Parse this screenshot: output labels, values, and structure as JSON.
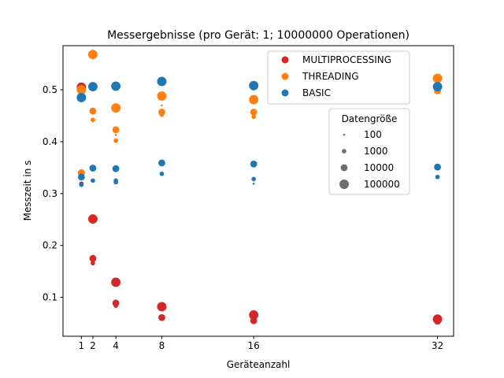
{
  "chart_data": {
    "type": "scatter",
    "title": "Messergebnisse (pro Gerät: 1; 10000000 Operationen)",
    "xlabel": "Geräteanzahl",
    "ylabel": "Messzeit in s",
    "xlim": [
      -0.6,
      33.4
    ],
    "ylim": [
      0.025,
      0.585
    ],
    "x_ticks": [
      1,
      2,
      4,
      8,
      16,
      32
    ],
    "y_ticks": [
      0.1,
      0.2,
      0.3,
      0.4,
      0.5
    ],
    "y_tick_labels": [
      "0.1",
      "0.2",
      "0.3",
      "0.4",
      "0.5"
    ],
    "grid": false,
    "legend_placement": "top-right",
    "size_legend_title": "Datengröße",
    "sizes": [
      100,
      1000,
      10000,
      100000
    ],
    "size_labels": [
      "100",
      "1000",
      "10000",
      "100000"
    ],
    "series": [
      {
        "name": "MULTIPROCESSING",
        "color": "#d62728",
        "points": [
          {
            "x": 1,
            "y": 0.316,
            "size": 100
          },
          {
            "x": 1,
            "y": 0.319,
            "size": 1000
          },
          {
            "x": 1,
            "y": 0.34,
            "size": 10000
          },
          {
            "x": 1,
            "y": 0.505,
            "size": 100000
          },
          {
            "x": 2,
            "y": 0.166,
            "size": 1000
          },
          {
            "x": 2,
            "y": 0.175,
            "size": 10000
          },
          {
            "x": 2,
            "y": 0.251,
            "size": 100000
          },
          {
            "x": 4,
            "y": 0.084,
            "size": 1000
          },
          {
            "x": 4,
            "y": 0.089,
            "size": 10000
          },
          {
            "x": 4,
            "y": 0.129,
            "size": 100000
          },
          {
            "x": 8,
            "y": 0.061,
            "size": 10000
          },
          {
            "x": 8,
            "y": 0.082,
            "size": 100000
          },
          {
            "x": 16,
            "y": 0.055,
            "size": 10000
          },
          {
            "x": 16,
            "y": 0.066,
            "size": 100000
          },
          {
            "x": 32,
            "y": 0.054,
            "size": 10000
          },
          {
            "x": 32,
            "y": 0.058,
            "size": 100000
          }
        ]
      },
      {
        "name": "THREADING",
        "color": "#ff7f0e",
        "points": [
          {
            "x": 1,
            "y": 0.34,
            "size": 10000
          },
          {
            "x": 1,
            "y": 0.5,
            "size": 100000
          },
          {
            "x": 2,
            "y": 0.442,
            "size": 1000
          },
          {
            "x": 2,
            "y": 0.459,
            "size": 10000
          },
          {
            "x": 2,
            "y": 0.568,
            "size": 100000
          },
          {
            "x": 4,
            "y": 0.402,
            "size": 1000
          },
          {
            "x": 4,
            "y": 0.413,
            "size": 100
          },
          {
            "x": 4,
            "y": 0.423,
            "size": 10000
          },
          {
            "x": 4,
            "y": 0.465,
            "size": 100000
          },
          {
            "x": 8,
            "y": 0.452,
            "size": 1000
          },
          {
            "x": 8,
            "y": 0.457,
            "size": 10000
          },
          {
            "x": 8,
            "y": 0.47,
            "size": 100
          },
          {
            "x": 8,
            "y": 0.488,
            "size": 100000
          },
          {
            "x": 16,
            "y": 0.448,
            "size": 1000
          },
          {
            "x": 16,
            "y": 0.457,
            "size": 10000
          },
          {
            "x": 16,
            "y": 0.481,
            "size": 100000
          },
          {
            "x": 32,
            "y": 0.498,
            "size": 10000
          },
          {
            "x": 32,
            "y": 0.522,
            "size": 100000
          }
        ]
      },
      {
        "name": "BASIC",
        "color": "#1f77b4",
        "points": [
          {
            "x": 1,
            "y": 0.317,
            "size": 1000
          },
          {
            "x": 1,
            "y": 0.332,
            "size": 10000
          },
          {
            "x": 1,
            "y": 0.485,
            "size": 100000
          },
          {
            "x": 2,
            "y": 0.325,
            "size": 1000
          },
          {
            "x": 2,
            "y": 0.349,
            "size": 10000
          },
          {
            "x": 2,
            "y": 0.506,
            "size": 100000
          },
          {
            "x": 4,
            "y": 0.322,
            "size": 1000
          },
          {
            "x": 4,
            "y": 0.325,
            "size": 1000
          },
          {
            "x": 4,
            "y": 0.348,
            "size": 10000
          },
          {
            "x": 4,
            "y": 0.507,
            "size": 100000
          },
          {
            "x": 8,
            "y": 0.338,
            "size": 1000
          },
          {
            "x": 8,
            "y": 0.359,
            "size": 10000
          },
          {
            "x": 8,
            "y": 0.516,
            "size": 100000
          },
          {
            "x": 16,
            "y": 0.319,
            "size": 100
          },
          {
            "x": 16,
            "y": 0.328,
            "size": 1000
          },
          {
            "x": 16,
            "y": 0.357,
            "size": 10000
          },
          {
            "x": 16,
            "y": 0.508,
            "size": 100000
          },
          {
            "x": 32,
            "y": 0.332,
            "size": 1000
          },
          {
            "x": 32,
            "y": 0.351,
            "size": 10000
          },
          {
            "x": 32,
            "y": 0.506,
            "size": 100000
          }
        ]
      }
    ]
  }
}
